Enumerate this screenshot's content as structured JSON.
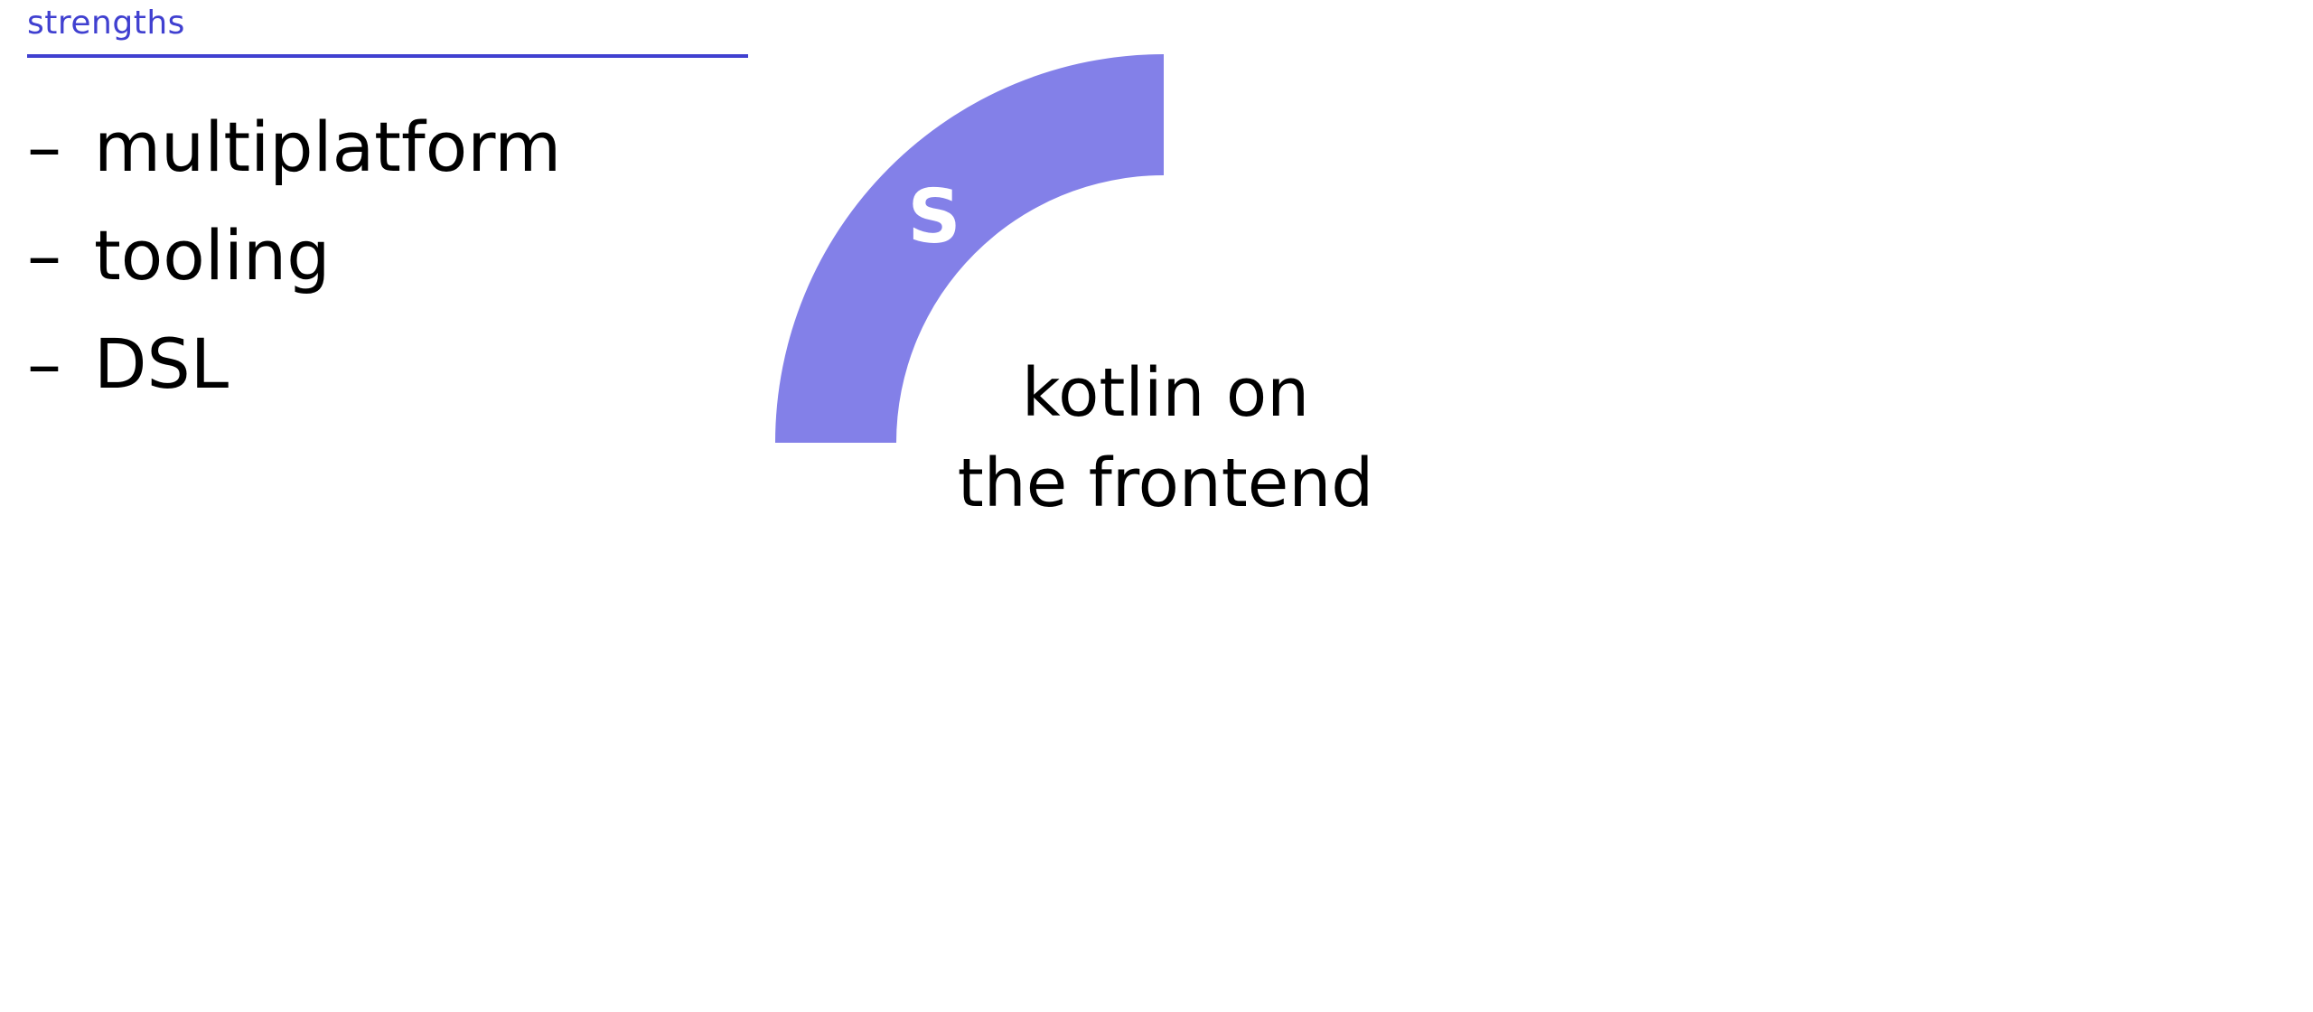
{
  "colors": {
    "accent_header": "#4040d0",
    "segment_fill": "#8380e8",
    "text": "#000000",
    "background": "#ffffff"
  },
  "section": {
    "title": "strengths"
  },
  "bullets": {
    "dash": "–",
    "items": [
      "multiplatform",
      "tooling",
      "DSL"
    ]
  },
  "diagram": {
    "segment_letter": "S",
    "center_title_line1": "kotlin on",
    "center_title_line2": "the frontend"
  }
}
